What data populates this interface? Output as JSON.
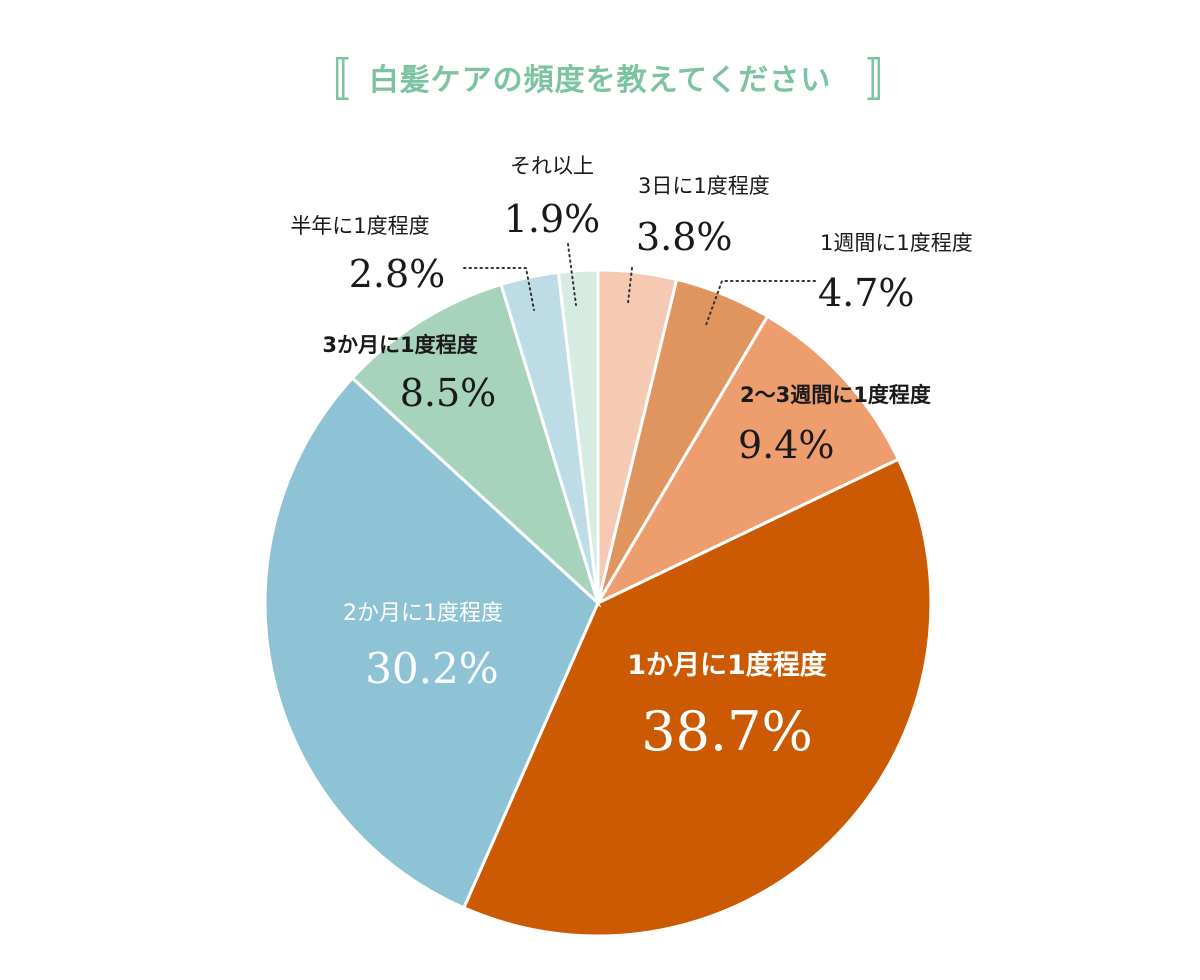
{
  "title": "白髪ケアの頻度を教えてください",
  "title_brackets": [
    "〚",
    "〛"
  ],
  "colors": {
    "title": "#7cc3a1",
    "text_dark": "#1a1a1a",
    "text_light": "#ffffff",
    "dotted_leader": "#333333"
  },
  "chart_data": {
    "type": "pie",
    "title": "白髪ケアの頻度を教えてください",
    "start": "12 o'clock, clockwise",
    "slices": [
      {
        "label": "3日に1度程度",
        "value": 3.8,
        "display": "3.8%",
        "color": "#f6c9b3"
      },
      {
        "label": "1週間に1度程度",
        "value": 4.7,
        "display": "4.7%",
        "color": "#e0955e"
      },
      {
        "label": "2〜3週間に1度程度",
        "value": 9.4,
        "display": "9.4%",
        "color": "#ee9d6f"
      },
      {
        "label": "1か月に1度程度",
        "value": 38.7,
        "display": "38.7%",
        "color": "#cb5a02"
      },
      {
        "label": "2か月に1度程度",
        "value": 30.2,
        "display": "30.2%",
        "color": "#8ec3d6"
      },
      {
        "label": "3か月に1度程度",
        "value": 8.5,
        "display": "8.5%",
        "color": "#a7d3bd"
      },
      {
        "label": "半年に1度程度",
        "value": 2.8,
        "display": "2.8%",
        "color": "#bddce6"
      },
      {
        "label": "それ以上",
        "value": 1.9,
        "display": "1.9%",
        "color": "#d6ebe1"
      }
    ]
  }
}
